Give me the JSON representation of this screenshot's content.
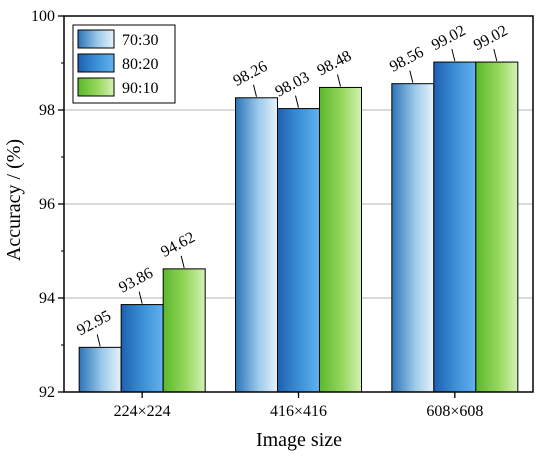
{
  "chart_data": {
    "type": "bar",
    "categories": [
      "224×224",
      "416×416",
      "608×608"
    ],
    "series": [
      {
        "name": "70:30",
        "values": [
          92.95,
          98.26,
          98.56
        ],
        "color": "#6aaad6"
      },
      {
        "name": "80:20",
        "values": [
          93.86,
          98.03,
          99.02
        ],
        "color": "#2f80c8"
      },
      {
        "name": "90:10",
        "values": [
          94.62,
          98.48,
          99.02
        ],
        "color": "#86cf4c"
      }
    ],
    "data_labels": [
      [
        "92.95",
        "93.86",
        "94.62"
      ],
      [
        "98.26",
        "98.03",
        "98.48"
      ],
      [
        "98.56",
        "99.02",
        "99.02"
      ]
    ],
    "xlabel": "Image size",
    "ylabel": "Accuracy / (%)",
    "ylim": [
      92,
      100
    ],
    "yticks": [
      "92",
      "94",
      "96",
      "98",
      "100"
    ],
    "grid": true,
    "legend_position": "top-left"
  }
}
